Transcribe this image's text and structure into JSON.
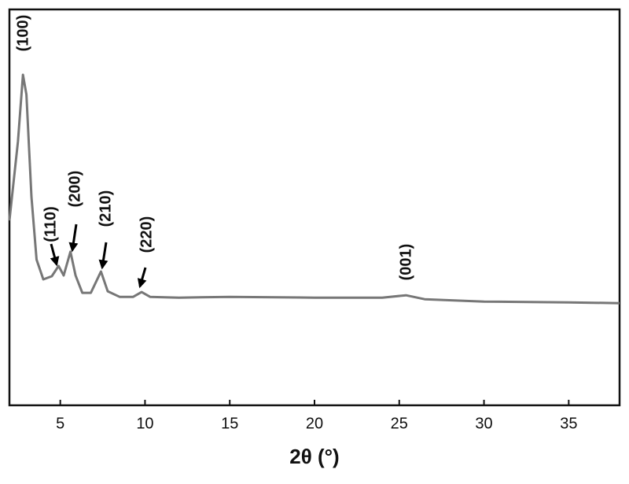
{
  "chart_data": {
    "type": "line",
    "xlabel": "2θ (°)",
    "x": [
      2.0,
      2.5,
      2.8,
      3.0,
      3.3,
      3.6,
      4.0,
      4.5,
      4.9,
      5.2,
      5.6,
      5.9,
      6.3,
      6.8,
      7.4,
      7.8,
      8.5,
      9.3,
      9.8,
      10.3,
      12,
      15,
      20,
      24,
      25.4,
      26.5,
      30,
      35,
      38
    ],
    "values": [
      46.7,
      66.6,
      83.5,
      78.5,
      52.7,
      36.8,
      31.8,
      32.6,
      35.2,
      32.8,
      38.8,
      32.8,
      28.4,
      28.4,
      33.8,
      28.8,
      27.4,
      27.4,
      28.6,
      27.4,
      27.2,
      27.4,
      27.2,
      27.2,
      27.8,
      26.8,
      26.2,
      26.0,
      25.8
    ],
    "color": "#777777",
    "xlim": [
      2,
      38
    ],
    "xticks": [
      5,
      10,
      15,
      20,
      25,
      30,
      35
    ],
    "ylim": [
      0,
      100
    ],
    "annotations": [
      "(100)",
      "(110)",
      "(200)",
      "(210)",
      "(220)",
      "(001)"
    ]
  }
}
